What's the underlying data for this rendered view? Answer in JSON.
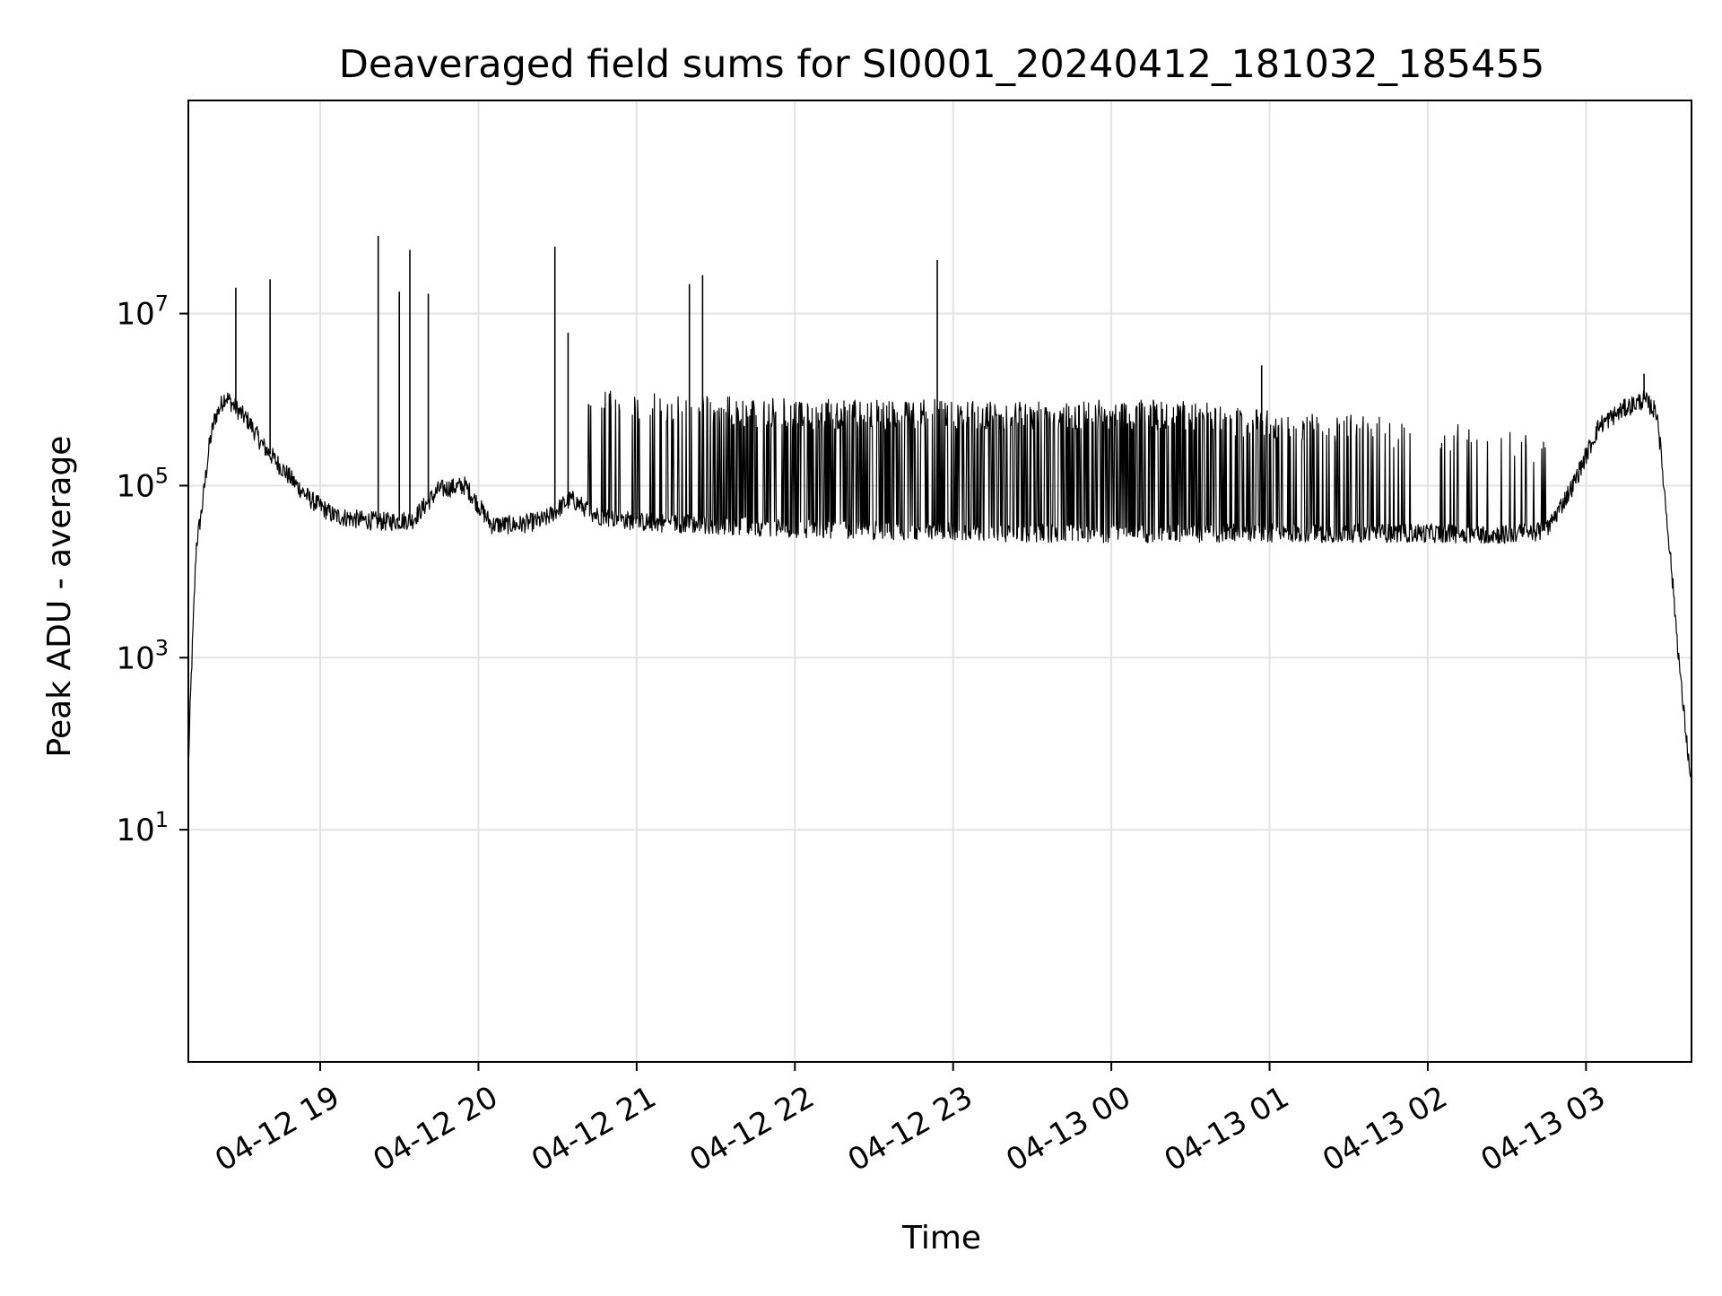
{
  "chart_data": {
    "type": "line",
    "title": "Deaveraged field sums for SI0001_20240412_181032_185455",
    "xlabel": "Time",
    "ylabel": "Peak ADU - average",
    "yscale": "log",
    "ylim": [
      0.02,
      3000000000
    ],
    "xlim": [
      "2024-04-12 18:10",
      "2024-04-13 03:40"
    ],
    "grid": true,
    "legend": "none",
    "line_color": "#000000",
    "x_ticks": [
      "2024-04-12 19:00",
      "2024-04-12 20:00",
      "2024-04-12 21:00",
      "2024-04-12 22:00",
      "2024-04-12 23:00",
      "2024-04-13 00:00",
      "2024-04-13 01:00",
      "2024-04-13 02:00",
      "2024-04-13 03:00"
    ],
    "x_tick_labels": [
      "04-12 19",
      "04-12 20",
      "04-12 21",
      "04-12 22",
      "04-12 23",
      "04-13 00",
      "04-13 01",
      "04-13 02",
      "04-13 03"
    ],
    "y_ticks": [
      10,
      1000,
      100000,
      10000000
    ],
    "y_tick_labels": [
      {
        "base": "10",
        "exp": "1"
      },
      {
        "base": "10",
        "exp": "3"
      },
      {
        "base": "10",
        "exp": "5"
      },
      {
        "base": "10",
        "exp": "7"
      }
    ],
    "baseline": {
      "x": [
        "2024-04-12 18:10",
        "2024-04-12 18:11",
        "2024-04-12 18:13",
        "2024-04-12 18:15",
        "2024-04-12 18:18",
        "2024-04-12 18:20",
        "2024-04-12 18:24",
        "2024-04-12 18:28",
        "2024-04-12 18:33",
        "2024-04-12 18:38",
        "2024-04-12 18:44",
        "2024-04-12 18:50",
        "2024-04-12 18:56",
        "2024-04-12 19:05",
        "2024-04-12 19:15",
        "2024-04-12 19:25",
        "2024-04-12 19:35",
        "2024-04-12 19:45",
        "2024-04-12 19:55",
        "2024-04-12 20:05",
        "2024-04-12 20:15",
        "2024-04-12 20:25",
        "2024-04-12 20:35",
        "2024-04-12 20:45",
        "2024-04-12 21:00",
        "2024-04-12 21:30",
        "2024-04-12 22:00",
        "2024-04-12 22:30",
        "2024-04-12 23:00",
        "2024-04-12 23:30",
        "2024-04-13 00:00",
        "2024-04-13 00:30",
        "2024-04-13 01:00",
        "2024-04-13 01:30",
        "2024-04-13 02:00",
        "2024-04-13 02:30",
        "2024-04-13 02:45",
        "2024-04-13 02:55",
        "2024-04-13 03:05",
        "2024-04-13 03:15",
        "2024-04-13 03:22",
        "2024-04-13 03:27",
        "2024-04-13 03:32",
        "2024-04-13 03:36",
        "2024-04-13 03:40"
      ],
      "y": [
        50,
        500,
        20000,
        50000,
        300000,
        600000,
        1100000,
        800000,
        550000,
        300000,
        180000,
        110000,
        70000,
        45000,
        40000,
        38000,
        40000,
        90000,
        100000,
        35000,
        35000,
        40000,
        70000,
        45000,
        38000,
        35000,
        32000,
        30000,
        30000,
        28000,
        28000,
        28000,
        28000,
        28000,
        28000,
        27000,
        30000,
        100000,
        500000,
        800000,
        1000000,
        700000,
        15000,
        500,
        30
      ]
    },
    "spikes": {
      "x": [
        "2024-04-12 18:28",
        "2024-04-12 18:41",
        "2024-04-12 19:22",
        "2024-04-12 19:30",
        "2024-04-12 19:34",
        "2024-04-12 19:41",
        "2024-04-12 20:29",
        "2024-04-12 20:34",
        "2024-04-12 21:20",
        "2024-04-12 21:25",
        "2024-04-12 22:54",
        "2024-04-13 00:57",
        "2024-04-13 03:22"
      ],
      "y": [
        20000000,
        25000000,
        80000000,
        18000000,
        55000000,
        17000000,
        60000000,
        6000000,
        22000000,
        28000000,
        42000000,
        2500000,
        2000000
      ]
    },
    "peak_band": {
      "x_start": "2024-04-12 20:40",
      "x_end": "2024-04-13 02:45",
      "y": [
        1300000,
        1200000,
        1100000,
        1000000,
        1000000,
        1000000,
        1000000,
        1000000,
        1000000,
        800000,
        700000,
        600000,
        500000,
        400000
      ]
    }
  }
}
